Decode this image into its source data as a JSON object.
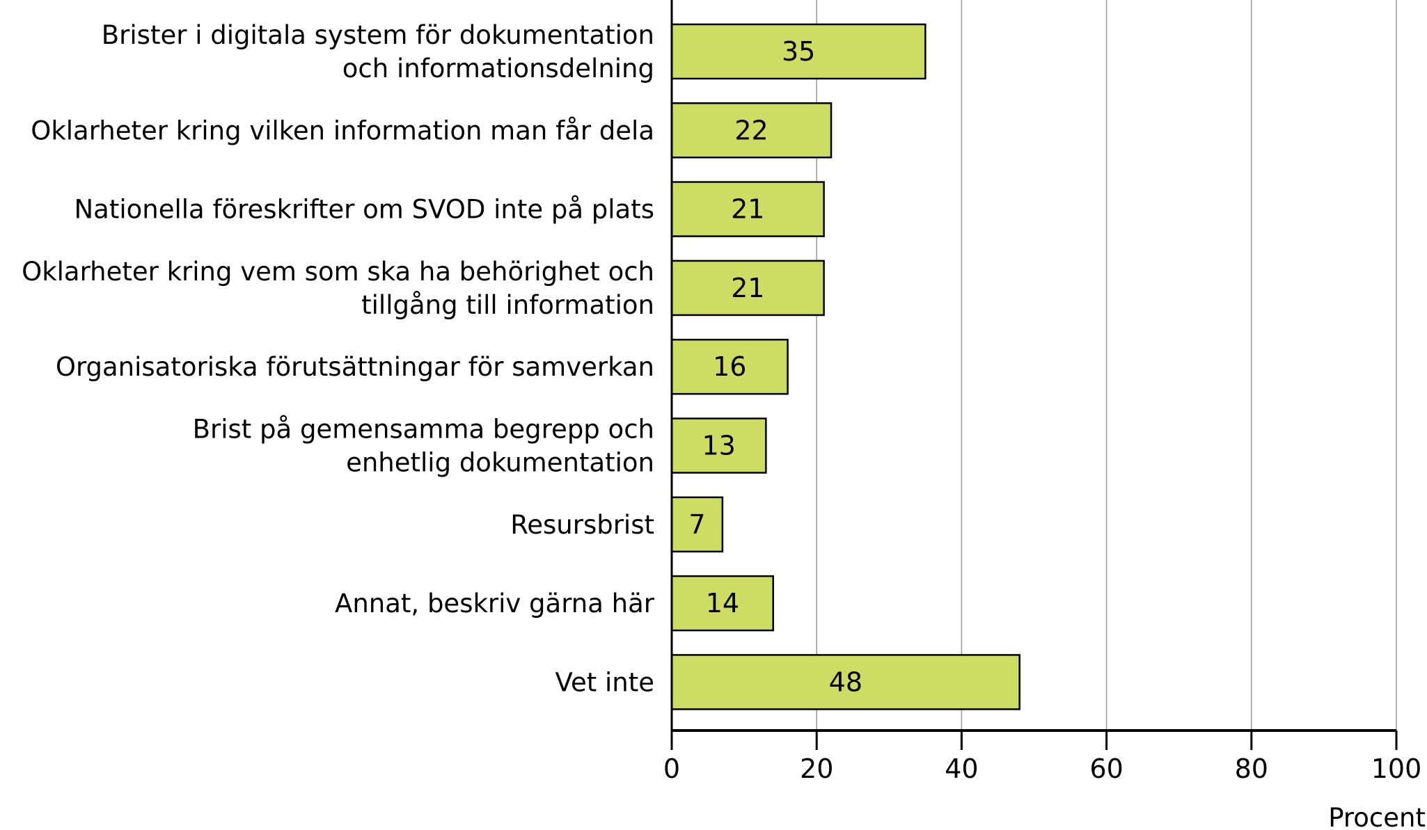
{
  "chart_data": {
    "type": "bar",
    "orientation": "horizontal",
    "categories": [
      [
        "Brister i digitala system för dokumentation",
        "och informationsdelning"
      ],
      [
        "Oklarheter kring vilken information man får dela"
      ],
      [
        "Nationella föreskrifter om SVOD inte på plats"
      ],
      [
        "Oklarheter kring vem som ska ha behörighet och",
        "tillgång till information"
      ],
      [
        "Organisatoriska förutsättningar för samverkan"
      ],
      [
        "Brist på gemensamma begrepp och",
        "enhetlig dokumentation"
      ],
      [
        "Resursbrist"
      ],
      [
        "Annat, beskriv gärna här"
      ],
      [
        "Vet inte"
      ]
    ],
    "values": [
      35,
      22,
      21,
      21,
      16,
      13,
      7,
      14,
      48
    ],
    "data_labels": [
      "35",
      "22",
      "21",
      "21",
      "16",
      "13",
      "7",
      "14",
      "48"
    ],
    "xlabel": "Procent",
    "xlim": [
      0,
      100
    ],
    "xticks": [
      "0",
      "20",
      "40",
      "60",
      "80",
      "100"
    ],
    "grid": true,
    "colors": {
      "bar": "#cddc63",
      "grid": "#999999",
      "axis": "#000000"
    }
  }
}
